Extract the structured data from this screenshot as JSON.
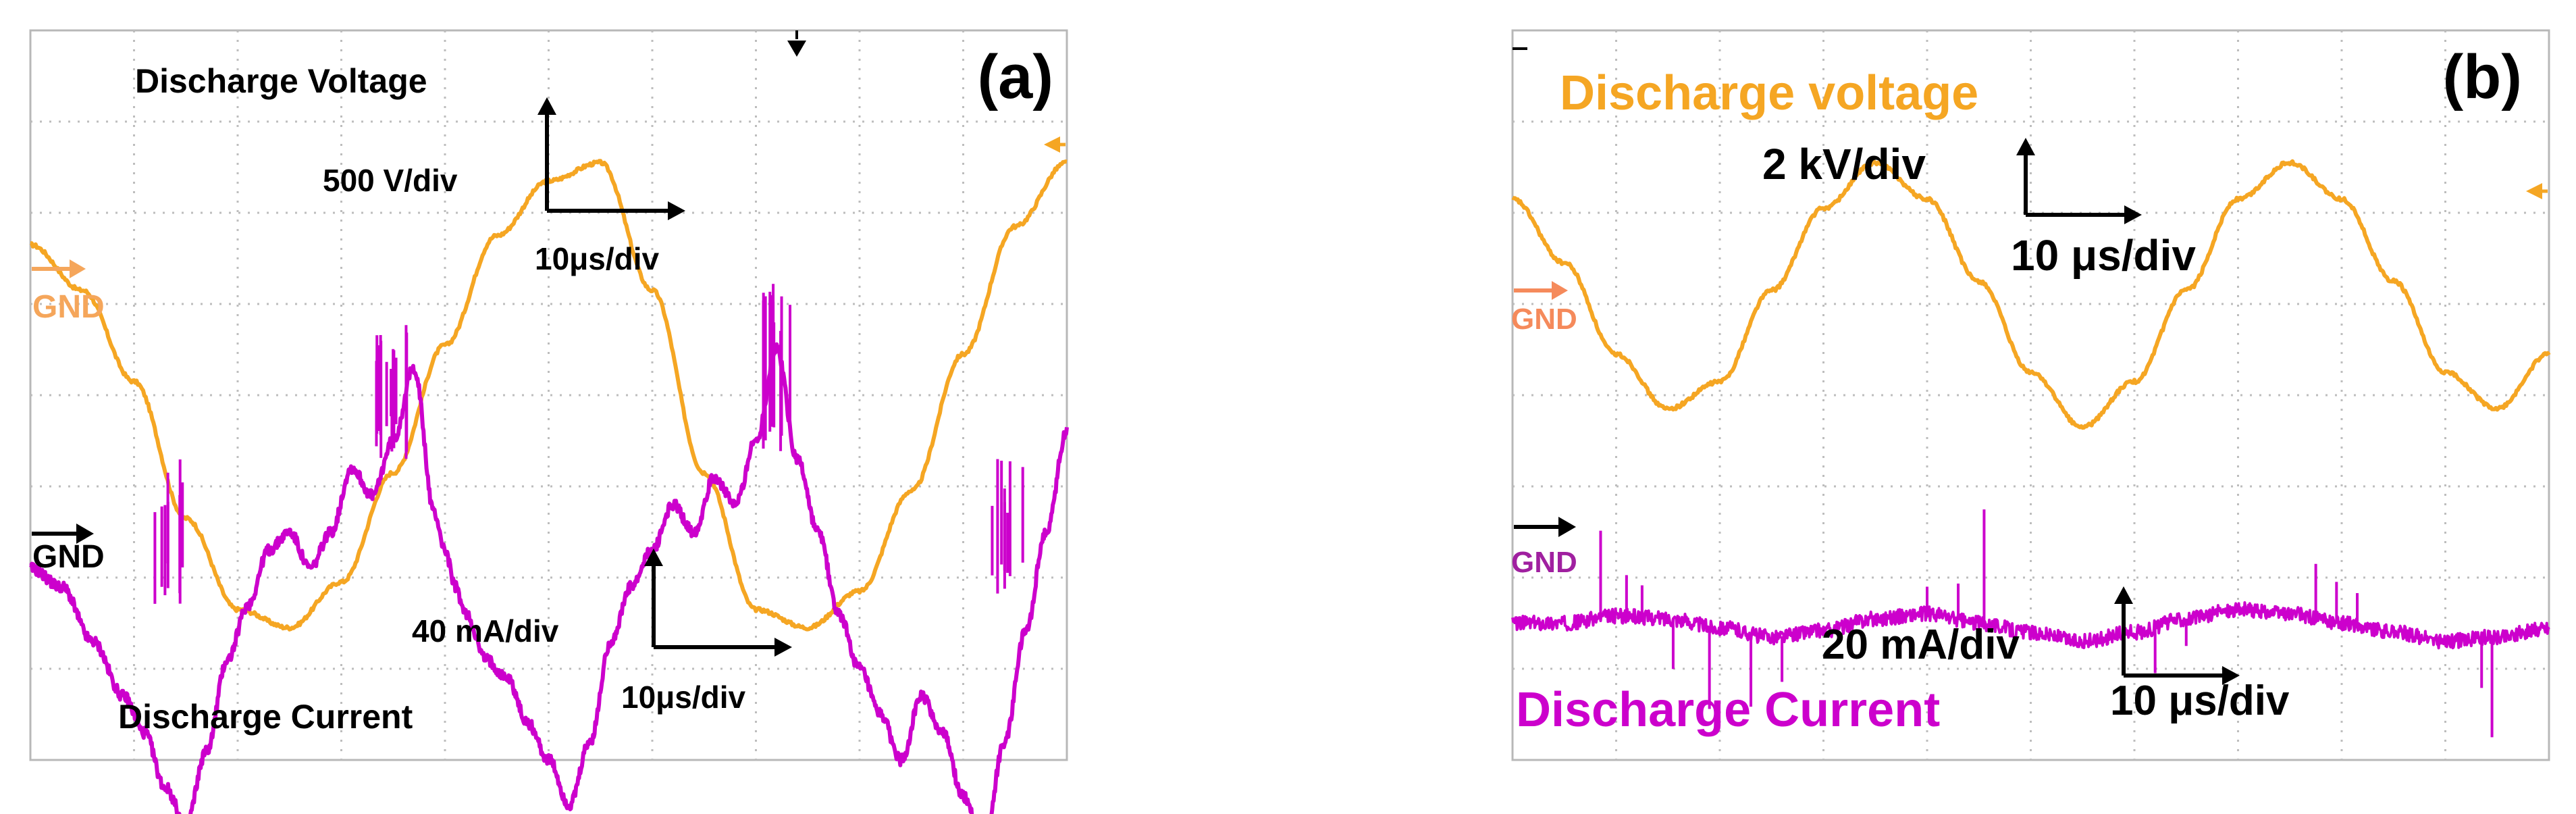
{
  "colors": {
    "voltage": "#F5A623",
    "current": "#CC00CC",
    "grid": "#BDBDBD",
    "frame": "#B8B8B8",
    "text": "#000000",
    "gnd_voltage": "#F5A65B",
    "gnd_current": "#A020A0",
    "gnd_voltage_b": "#F58A5B"
  },
  "chart_data": [
    {
      "type": "line",
      "panel_label": "(a)",
      "x_divisions": 10,
      "y_divisions": 8,
      "grid": true,
      "labels": {
        "voltage_title": "Discharge Voltage",
        "voltage_scale": "500 V/div",
        "voltage_time": "10μs/div",
        "current_title": "Discharge Current",
        "current_scale": "40 mA/div",
        "current_time": "10μs/div",
        "gnd_voltage": "GND",
        "gnd_current": "GND"
      },
      "series": [
        {
          "name": "Discharge Voltage",
          "x": [
            0,
            0.5,
            1,
            1.5,
            2,
            2.5,
            3,
            3.5,
            4,
            4.5,
            5,
            5.5,
            6,
            6.5,
            7,
            7.5,
            8,
            8.5,
            9,
            9.5,
            10
          ],
          "y": [
            5.3,
            4.8,
            3.8,
            2.3,
            1.3,
            1.1,
            1.6,
            2.8,
            4.2,
            5.4,
            6.0,
            6.2,
            4.8,
            2.8,
            1.3,
            1.1,
            1.5,
            2.6,
            4.1,
            5.5,
            6.2
          ],
          "ref_div": 3.4
        },
        {
          "name": "Discharge Current",
          "x": [
            0,
            0.3,
            0.6,
            0.9,
            1.1,
            1.3,
            1.5,
            1.7,
            1.9,
            2.1,
            2.3,
            2.5,
            2.7,
            2.9,
            3.1,
            3.3,
            3.5,
            3.7,
            3.9,
            4.0,
            4.1,
            4.2,
            4.4,
            4.6,
            4.8,
            5.0,
            5.2,
            5.4,
            5.6,
            5.8,
            6.0,
            6.2,
            6.4,
            6.6,
            6.8,
            7.0,
            7.2,
            7.4,
            7.6,
            7.8,
            8.0,
            8.2,
            8.4,
            8.6,
            8.8,
            9.0,
            9.2,
            9.4,
            9.6,
            9.8,
            10
          ],
          "y": [
            0.2,
            0.0,
            -0.6,
            -1.2,
            -1.6,
            -2.2,
            -2.6,
            -1.8,
            -0.8,
            -0.2,
            0.4,
            0.6,
            0.2,
            0.6,
            1.3,
            1.0,
            1.6,
            2.4,
            0.8,
            0.4,
            0.0,
            -0.3,
            -0.8,
            -1.0,
            -1.5,
            -1.9,
            -2.4,
            -1.7,
            -0.6,
            0.0,
            0.4,
            0.9,
            0.6,
            1.2,
            0.9,
            1.6,
            2.6,
            1.4,
            0.6,
            -0.3,
            -0.9,
            -1.4,
            -1.9,
            -1.2,
            -1.6,
            -2.3,
            -2.8,
            -1.7,
            -0.5,
            0.6,
            1.7
          ],
          "ref_div": 0.0
        }
      ]
    },
    {
      "type": "line",
      "panel_label": "(b)",
      "x_divisions": 10,
      "y_divisions": 8,
      "grid": true,
      "labels": {
        "voltage_title": "Discharge voltage",
        "voltage_scale": "2 kV/div",
        "voltage_time": "10 μs/div",
        "current_title": "Discharge Current",
        "current_scale": "20 mA/div",
        "current_time": "10 μs/div",
        "gnd_voltage": "GND",
        "gnd_current": "GND"
      },
      "series": [
        {
          "name": "Discharge voltage",
          "x": [
            0,
            0.5,
            1,
            1.5,
            2,
            2.5,
            3,
            3.5,
            4,
            4.5,
            5,
            5.5,
            6,
            6.5,
            7,
            7.5,
            8,
            8.5,
            9,
            9.5,
            10
          ],
          "y": [
            2.6,
            1.9,
            0.9,
            0.3,
            0.6,
            1.6,
            2.5,
            3.0,
            2.6,
            1.7,
            0.7,
            0.1,
            0.6,
            1.6,
            2.6,
            3.0,
            2.6,
            1.7,
            0.7,
            0.3,
            0.9
          ],
          "ref_div": 1.6
        },
        {
          "name": "Discharge Current",
          "x": [
            0,
            0.5,
            1,
            1.5,
            2,
            2.5,
            3,
            3.5,
            4,
            4.5,
            5,
            5.5,
            6,
            6.5,
            7,
            7.5,
            8,
            8.5,
            9,
            9.5,
            10
          ],
          "y": [
            0.0,
            0.0,
            0.08,
            0.05,
            -0.05,
            -0.15,
            -0.08,
            0.05,
            0.1,
            0.0,
            -0.1,
            -0.2,
            -0.1,
            0.05,
            0.15,
            0.1,
            0.0,
            -0.1,
            -0.2,
            -0.15,
            -0.05
          ],
          "ref_div": 0.0,
          "spikes": [
            {
              "x": 0.85,
              "dy": 0.95
            },
            {
              "x": 1.1,
              "dy": 0.45
            },
            {
              "x": 1.25,
              "dy": 0.35
            },
            {
              "x": 1.55,
              "dy": -0.55
            },
            {
              "x": 1.9,
              "dy": -0.9
            },
            {
              "x": 2.3,
              "dy": -0.8
            },
            {
              "x": 2.6,
              "dy": -0.5
            },
            {
              "x": 4.0,
              "dy": 0.3
            },
            {
              "x": 4.3,
              "dy": 0.4
            },
            {
              "x": 4.55,
              "dy": 1.25
            },
            {
              "x": 5.9,
              "dy": -0.4
            },
            {
              "x": 6.2,
              "dy": -0.5
            },
            {
              "x": 6.5,
              "dy": -0.3
            },
            {
              "x": 7.75,
              "dy": 0.6
            },
            {
              "x": 7.95,
              "dy": 0.45
            },
            {
              "x": 8.15,
              "dy": 0.35
            },
            {
              "x": 9.35,
              "dy": -0.55
            },
            {
              "x": 9.45,
              "dy": -1.1
            }
          ]
        }
      ]
    }
  ]
}
